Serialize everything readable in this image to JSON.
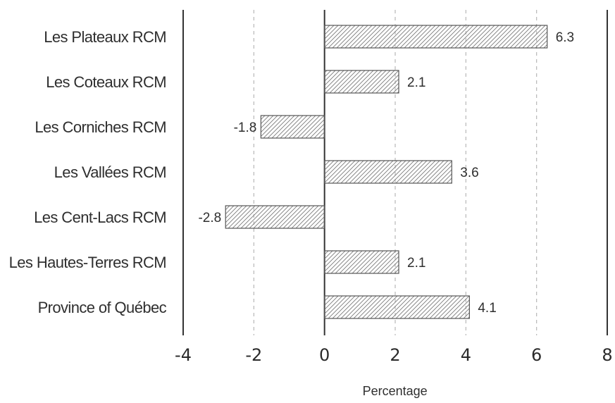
{
  "chart_data": {
    "type": "bar",
    "orientation": "horizontal",
    "categories": [
      "Les Plateaux RCM",
      "Les Coteaux RCM",
      "Les Corniches RCM",
      "Les Vallées RCM",
      "Les Cent-Lacs RCM",
      "Les Hautes-Terres RCM",
      "Province of Québec"
    ],
    "values": [
      6.3,
      2.1,
      -1.8,
      3.6,
      -2.8,
      2.1,
      4.1
    ],
    "data_labels": [
      "6.3",
      "2.1",
      "-1.8",
      "3.6",
      "-2.8",
      "2.1",
      "4.1"
    ],
    "xlabel": "Percentage",
    "ylabel": "",
    "xlim": [
      -4,
      8
    ],
    "xticks": [
      -4,
      -2,
      0,
      2,
      4,
      6,
      8
    ],
    "xtick_labels": [
      "-4",
      "-2",
      "0",
      "2",
      "4",
      "6",
      "8"
    ],
    "grid": "vertical dashed",
    "legend": "none",
    "bar_fill": "diagonal hatch",
    "colors": {
      "bar_stroke": "#555555",
      "hatch": "#7a7a7a",
      "grid": "#b8b8b8",
      "axis": "#333333",
      "text": "#2f2f2f"
    }
  }
}
